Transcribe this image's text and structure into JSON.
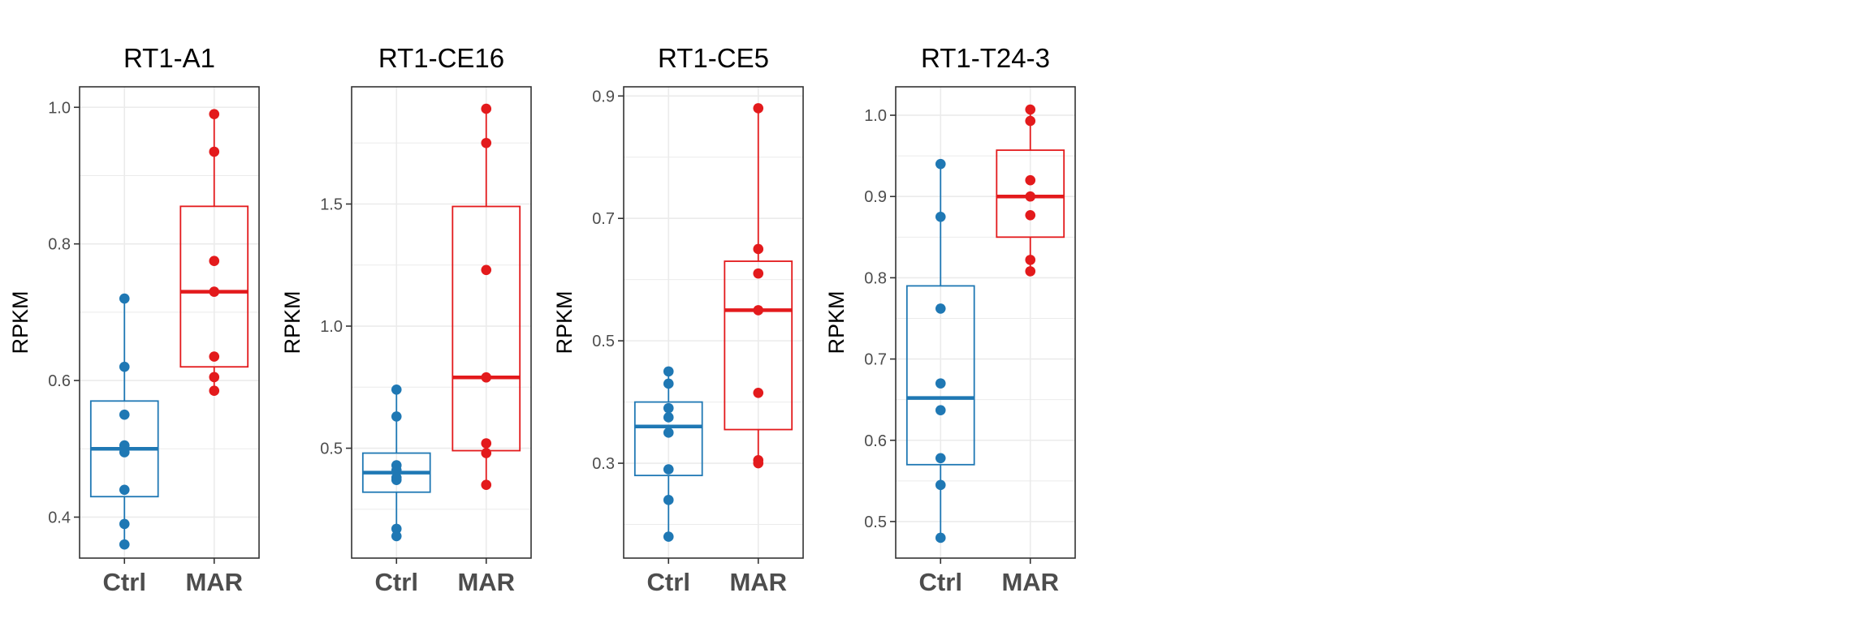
{
  "colors": {
    "Ctrl": "#1f78b4",
    "MAR": "#e31a1c",
    "grid": "#ebebeb",
    "panel_border": "#333333"
  },
  "chart_data": [
    {
      "type": "box",
      "title": "RT1-A1",
      "xlabel": "",
      "ylabel": "RPKM",
      "categories": [
        "Ctrl",
        "MAR"
      ],
      "ylim": [
        0.34,
        1.03
      ],
      "yticks": [
        0.4,
        0.6,
        0.8,
        1.0
      ],
      "ytick_labels": [
        "0.4",
        "0.6",
        "0.8",
        "1.0"
      ],
      "grid": true,
      "boxes": [
        {
          "group": "Ctrl",
          "min": 0.36,
          "q1": 0.43,
          "median": 0.5,
          "q3": 0.57,
          "max": 0.72,
          "points": [
            0.72,
            0.62,
            0.55,
            0.505,
            0.495,
            0.44,
            0.39,
            0.36
          ]
        },
        {
          "group": "MAR",
          "min": 0.585,
          "q1": 0.62,
          "median": 0.73,
          "q3": 0.855,
          "max": 0.99,
          "points": [
            0.99,
            0.935,
            0.775,
            0.73,
            0.635,
            0.605,
            0.585
          ]
        }
      ]
    },
    {
      "type": "box",
      "title": "RT1-CE16",
      "xlabel": "",
      "ylabel": "RPKM",
      "categories": [
        "Ctrl",
        "MAR"
      ],
      "ylim": [
        0.05,
        1.98
      ],
      "yticks": [
        0.5,
        1.0,
        1.5
      ],
      "ytick_labels": [
        "0.5",
        "1.0",
        "1.5"
      ],
      "grid": true,
      "boxes": [
        {
          "group": "Ctrl",
          "min": 0.14,
          "q1": 0.32,
          "median": 0.4,
          "q3": 0.48,
          "max": 0.74,
          "points": [
            0.74,
            0.63,
            0.43,
            0.41,
            0.38,
            0.37,
            0.17,
            0.14
          ]
        },
        {
          "group": "MAR",
          "min": 0.35,
          "q1": 0.49,
          "median": 0.79,
          "q3": 1.49,
          "max": 1.89,
          "points": [
            1.89,
            1.75,
            1.23,
            0.79,
            0.52,
            0.48,
            0.35
          ]
        }
      ]
    },
    {
      "type": "box",
      "title": "RT1-CE5",
      "xlabel": "",
      "ylabel": "RPKM",
      "categories": [
        "Ctrl",
        "MAR"
      ],
      "ylim": [
        0.145,
        0.915
      ],
      "yticks": [
        0.3,
        0.5,
        0.7,
        0.9
      ],
      "ytick_labels": [
        "0.3",
        "0.5",
        "0.7",
        "0.9"
      ],
      "grid": true,
      "boxes": [
        {
          "group": "Ctrl",
          "min": 0.18,
          "q1": 0.28,
          "median": 0.36,
          "q3": 0.4,
          "max": 0.45,
          "points": [
            0.45,
            0.43,
            0.39,
            0.375,
            0.35,
            0.29,
            0.24,
            0.18
          ]
        },
        {
          "group": "MAR",
          "min": 0.3,
          "q1": 0.355,
          "median": 0.55,
          "q3": 0.63,
          "max": 0.88,
          "points": [
            0.88,
            0.65,
            0.61,
            0.55,
            0.415,
            0.305,
            0.3
          ]
        }
      ]
    },
    {
      "type": "box",
      "title": "RT1-T24-3",
      "xlabel": "",
      "ylabel": "RPKM",
      "categories": [
        "Ctrl",
        "MAR"
      ],
      "ylim": [
        0.455,
        1.035
      ],
      "yticks": [
        0.5,
        0.6,
        0.7,
        0.8,
        0.9,
        1.0
      ],
      "ytick_labels": [
        "0.5",
        "0.6",
        "0.7",
        "0.8",
        "0.9",
        "1.0"
      ],
      "grid": true,
      "boxes": [
        {
          "group": "Ctrl",
          "min": 0.48,
          "q1": 0.57,
          "median": 0.652,
          "q3": 0.79,
          "max": 0.94,
          "points": [
            0.94,
            0.875,
            0.762,
            0.67,
            0.637,
            0.578,
            0.545,
            0.48
          ]
        },
        {
          "group": "MAR",
          "min": 0.808,
          "q1": 0.85,
          "median": 0.9,
          "q3": 0.957,
          "max": 1.007,
          "points": [
            1.007,
            0.993,
            0.92,
            0.9,
            0.877,
            0.822,
            0.808
          ]
        }
      ]
    }
  ]
}
